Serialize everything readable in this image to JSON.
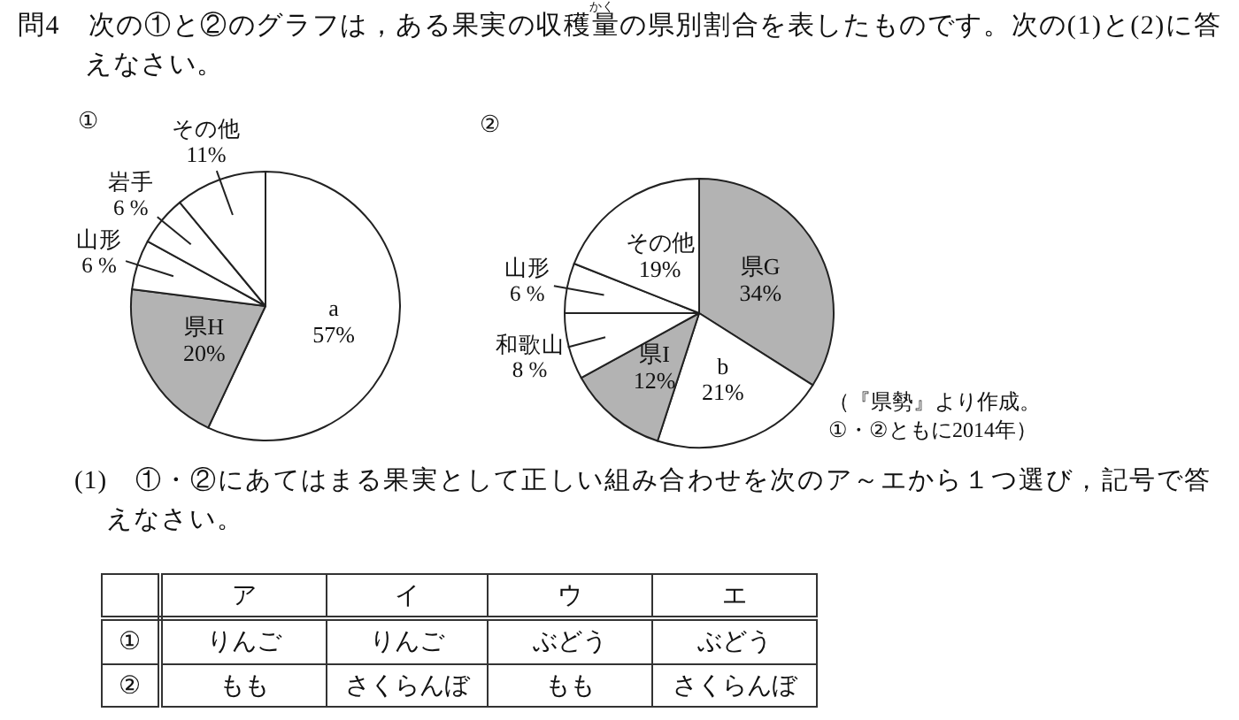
{
  "chart_data": [
    {
      "type": "other",
      "title": "問4　次の①と②のグラフは，ある果実の収穫量の県別割合を表したものです。次の(1)と(2)に答えなさい。",
      "annotations": [
        "かく"
      ]
    },
    {
      "type": "pie",
      "title": "①",
      "categories": [
        "a",
        "県H",
        "山形",
        "岩手",
        "その他"
      ],
      "values": [
        57,
        20,
        6,
        6,
        11
      ],
      "value_labels": [
        "57%",
        "20%",
        "6 %",
        "6 %",
        "11%"
      ],
      "colors": [
        "#ffffff",
        "#b3b3b3",
        "#ffffff",
        "#ffffff",
        "#ffffff"
      ]
    },
    {
      "type": "pie",
      "title": "②",
      "categories": [
        "県G",
        "b",
        "県I",
        "和歌山",
        "山形",
        "その他"
      ],
      "values": [
        34,
        21,
        12,
        8,
        6,
        19
      ],
      "value_labels": [
        "34%",
        "21%",
        "12%",
        "8 %",
        "6 %",
        "19%"
      ],
      "colors": [
        "#b3b3b3",
        "#ffffff",
        "#b3b3b3",
        "#ffffff",
        "#ffffff",
        "#ffffff"
      ],
      "annotations": [
        "（『県勢』より作成。\n①・②ともに2014年）"
      ]
    },
    {
      "type": "other",
      "title": "(1)　①・②にあてはまる果実として正しい組み合わせを次のア～エから１つ選び，記号で答えなさい。",
      "categories": [
        "ア",
        "イ",
        "ウ",
        "エ"
      ],
      "y_categories": [
        "①",
        "②"
      ],
      "cell_labels": [
        [
          "りんご",
          "りんご",
          "ぶどう",
          "ぶどう"
        ],
        [
          "もも",
          "さくらんぼ",
          "もも",
          "さくらんぼ"
        ]
      ]
    }
  ]
}
